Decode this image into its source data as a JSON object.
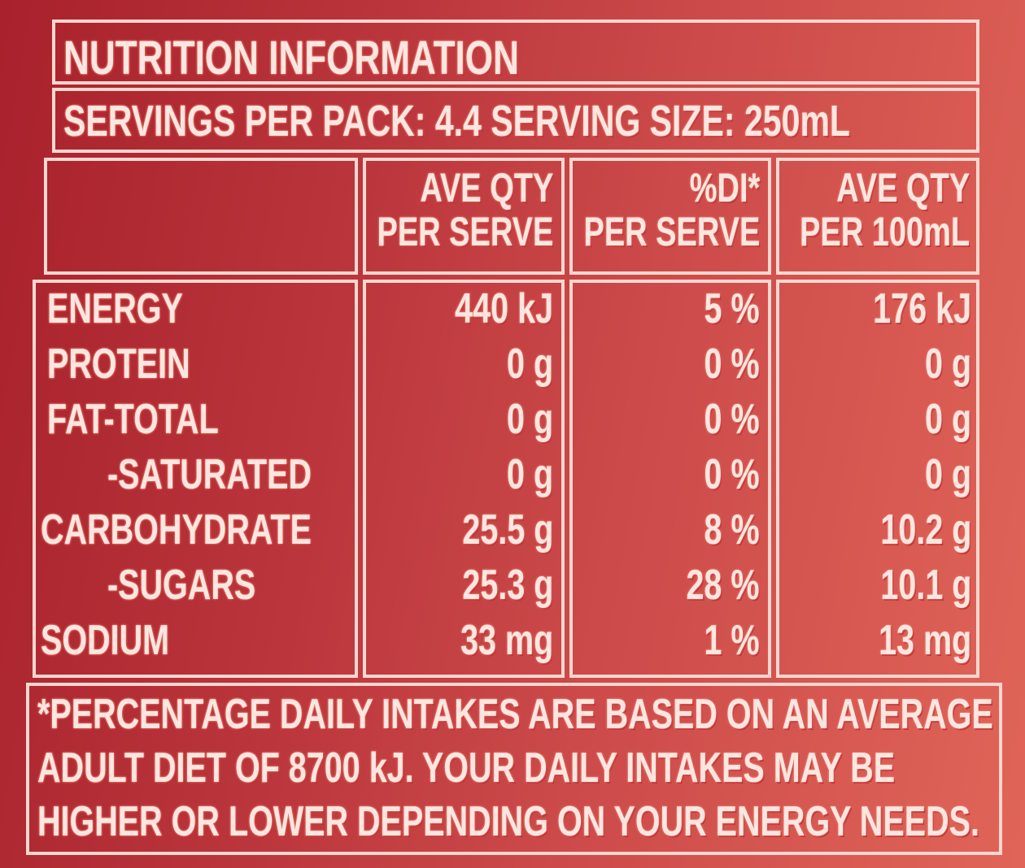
{
  "title": "NUTRITION INFORMATION",
  "servings": "SERVINGS PER PACK: 4.4  SERVING SIZE: 250mL",
  "headers": {
    "per_serve": [
      "AVE QTY",
      "PER SERVE"
    ],
    "di": [
      "%DI*",
      "PER SERVE"
    ],
    "per_100": [
      "AVE QTY",
      "PER 100mL"
    ]
  },
  "rows": [
    {
      "name": "ENERGY",
      "serve": "440 kJ",
      "di": "5 %",
      "per100": "176 kJ"
    },
    {
      "name": "PROTEIN",
      "serve": "0 g",
      "di": "0 %",
      "per100": "0 g"
    },
    {
      "name": "FAT-TOTAL",
      "serve": "0 g",
      "di": "0 %",
      "per100": "0 g"
    },
    {
      "name": "-SATURATED",
      "serve": "0 g",
      "di": "0 %",
      "per100": "0 g"
    },
    {
      "name": "CARBOHYDRATE",
      "serve": "25.5 g",
      "di": "8 %",
      "per100": "10.2 g"
    },
    {
      "name": "-SUGARS",
      "serve": "25.3 g",
      "di": "28 %",
      "per100": "10.1 g"
    },
    {
      "name": "SODIUM",
      "serve": "33 mg",
      "di": "1 %",
      "per100": "13 mg"
    }
  ],
  "footnote": [
    "*PERCENTAGE DAILY INTAKES ARE BASED ON AN AVERAGE",
    "ADULT DIET OF 8700 kJ. YOUR DAILY INTAKES MAY BE",
    "HIGHER OR LOWER DEPENDING ON YOUR ENERGY NEEDS."
  ]
}
